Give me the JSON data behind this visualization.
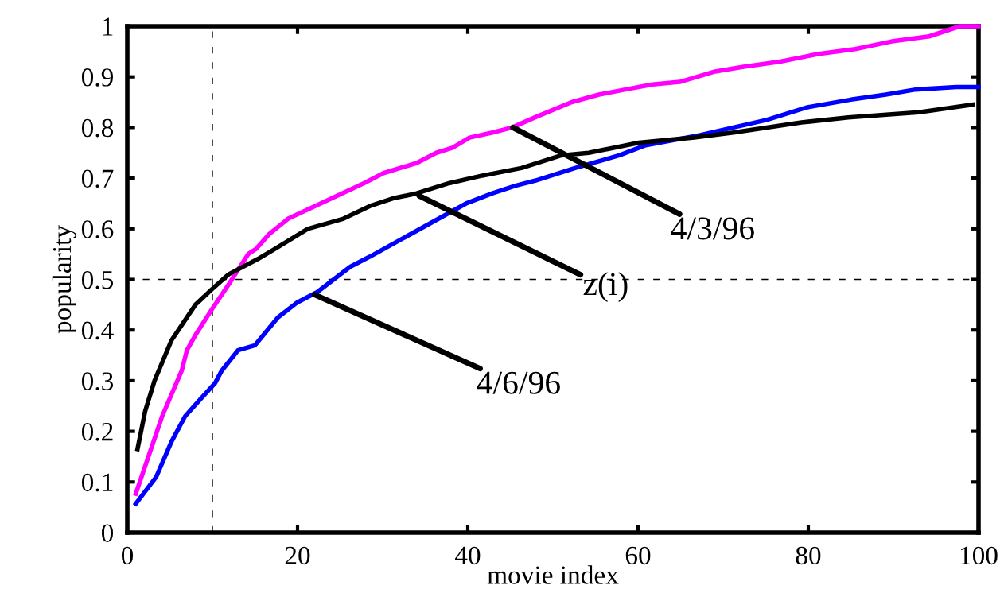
{
  "chart_data": {
    "type": "line",
    "xlabel": "movie index",
    "ylabel": "popularity",
    "xlim": [
      0,
      100
    ],
    "ylim": [
      0,
      1
    ],
    "xticks": [
      0,
      20,
      40,
      60,
      80,
      100
    ],
    "yticks": [
      0,
      0.1,
      0.2,
      0.3,
      0.4,
      0.5,
      0.6,
      0.7,
      0.8,
      0.9,
      1
    ],
    "grid": false,
    "marker": "none",
    "line_style": "solid",
    "series": [
      {
        "color": "#ff00ff",
        "x": [
          1,
          4.1,
          6.4,
          7,
          8,
          9.9,
          11.9,
          14.2,
          15.1,
          16.7,
          18.9,
          27.8,
          30.1,
          34,
          36.3,
          38.2,
          40.2,
          42.9,
          45.2,
          47.9,
          52.2,
          55.4,
          58.5,
          61.7,
          64.9,
          68.9,
          72.4,
          76.7,
          81.1,
          85.5,
          89.8,
          94.2,
          97.8,
          100
        ],
        "values": [
          0.077,
          0.23,
          0.32,
          0.36,
          0.39,
          0.44,
          0.49,
          0.55,
          0.56,
          0.59,
          0.62,
          0.69,
          0.71,
          0.73,
          0.75,
          0.76,
          0.78,
          0.79,
          0.8,
          0.82,
          0.85,
          0.865,
          0.875,
          0.885,
          0.89,
          0.91,
          0.92,
          0.93,
          0.945,
          0.955,
          0.97,
          0.98,
          1.0,
          1.0
        ]
      },
      {
        "color": "#0000ff",
        "x": [
          1,
          3.4,
          5.2,
          6.8,
          8.4,
          10.3,
          11.1,
          13,
          15,
          17.7,
          20,
          22.3,
          26.2,
          28.5,
          39.8,
          42.9,
          45.6,
          47.9,
          52.6,
          57.8,
          60.9,
          67.3,
          71.2,
          75.1,
          79.9,
          85,
          89.1,
          92.6,
          97.4,
          100
        ],
        "values": [
          0.057,
          0.11,
          0.18,
          0.23,
          0.26,
          0.295,
          0.32,
          0.36,
          0.37,
          0.425,
          0.455,
          0.475,
          0.525,
          0.545,
          0.65,
          0.67,
          0.685,
          0.695,
          0.72,
          0.745,
          0.765,
          0.785,
          0.8,
          0.815,
          0.84,
          0.855,
          0.865,
          0.875,
          0.88,
          0.88
        ]
      },
      {
        "color": "#000000",
        "x": [
          1.2,
          2.1,
          3.2,
          5.2,
          8,
          9.9,
          11.9,
          15.3,
          17.3,
          21.2,
          25.4,
          28.5,
          31.2,
          34,
          37.8,
          41.7,
          46.3,
          51,
          54.2,
          60.1,
          66.4,
          71.2,
          79.2,
          84.7,
          93,
          99.3
        ],
        "values": [
          0.165,
          0.24,
          0.3,
          0.38,
          0.45,
          0.48,
          0.51,
          0.54,
          0.56,
          0.6,
          0.62,
          0.645,
          0.66,
          0.67,
          0.69,
          0.705,
          0.72,
          0.745,
          0.75,
          0.77,
          0.78,
          0.79,
          0.81,
          0.82,
          0.83,
          0.845
        ]
      }
    ],
    "ref_lines": [
      {
        "axis": "x",
        "value": 10,
        "color": "#000000",
        "line_style": "dashed"
      },
      {
        "axis": "y",
        "value": 0.5,
        "color": "#000000",
        "line_style": "dashed"
      }
    ],
    "annotations": [
      {
        "text": "4/3/96",
        "x": 45.3,
        "y": 0.8
      },
      {
        "text": "z(i)",
        "x": 34.3,
        "y": 0.665
      },
      {
        "text": "4/6/96",
        "x": 22,
        "y": 0.47
      }
    ]
  }
}
